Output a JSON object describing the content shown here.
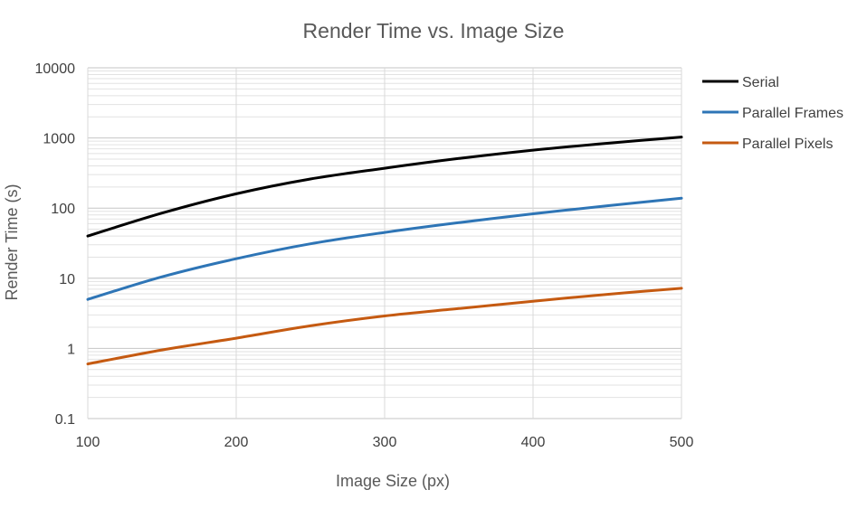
{
  "chart_data": {
    "type": "line",
    "title": "Render Time vs. Image Size",
    "xlabel": "Image Size (px)",
    "ylabel": "Render Time (s)",
    "xlim": [
      100,
      500
    ],
    "ylim": [
      0.1,
      10000
    ],
    "y_scale": "log",
    "x_ticks": [
      "100",
      "200",
      "300",
      "400",
      "500"
    ],
    "y_ticks": [
      "0.1",
      "1",
      "10",
      "100",
      "1000",
      "10000"
    ],
    "grid": true,
    "legend_position": "right",
    "x": [
      100,
      150,
      200,
      250,
      300,
      350,
      400,
      450,
      500
    ],
    "series": [
      {
        "name": "Serial",
        "color": "#000000",
        "values": [
          40,
          85,
          160,
          260,
          370,
          510,
          670,
          840,
          1030
        ]
      },
      {
        "name": "Parallel Frames",
        "color": "#2e75b6",
        "values": [
          5,
          10.5,
          19,
          31,
          45,
          62,
          83,
          108,
          138
        ]
      },
      {
        "name": "Parallel Pixels",
        "color": "#c55a11",
        "values": [
          0.6,
          0.95,
          1.4,
          2.1,
          2.9,
          3.7,
          4.7,
          5.9,
          7.2
        ]
      }
    ]
  }
}
